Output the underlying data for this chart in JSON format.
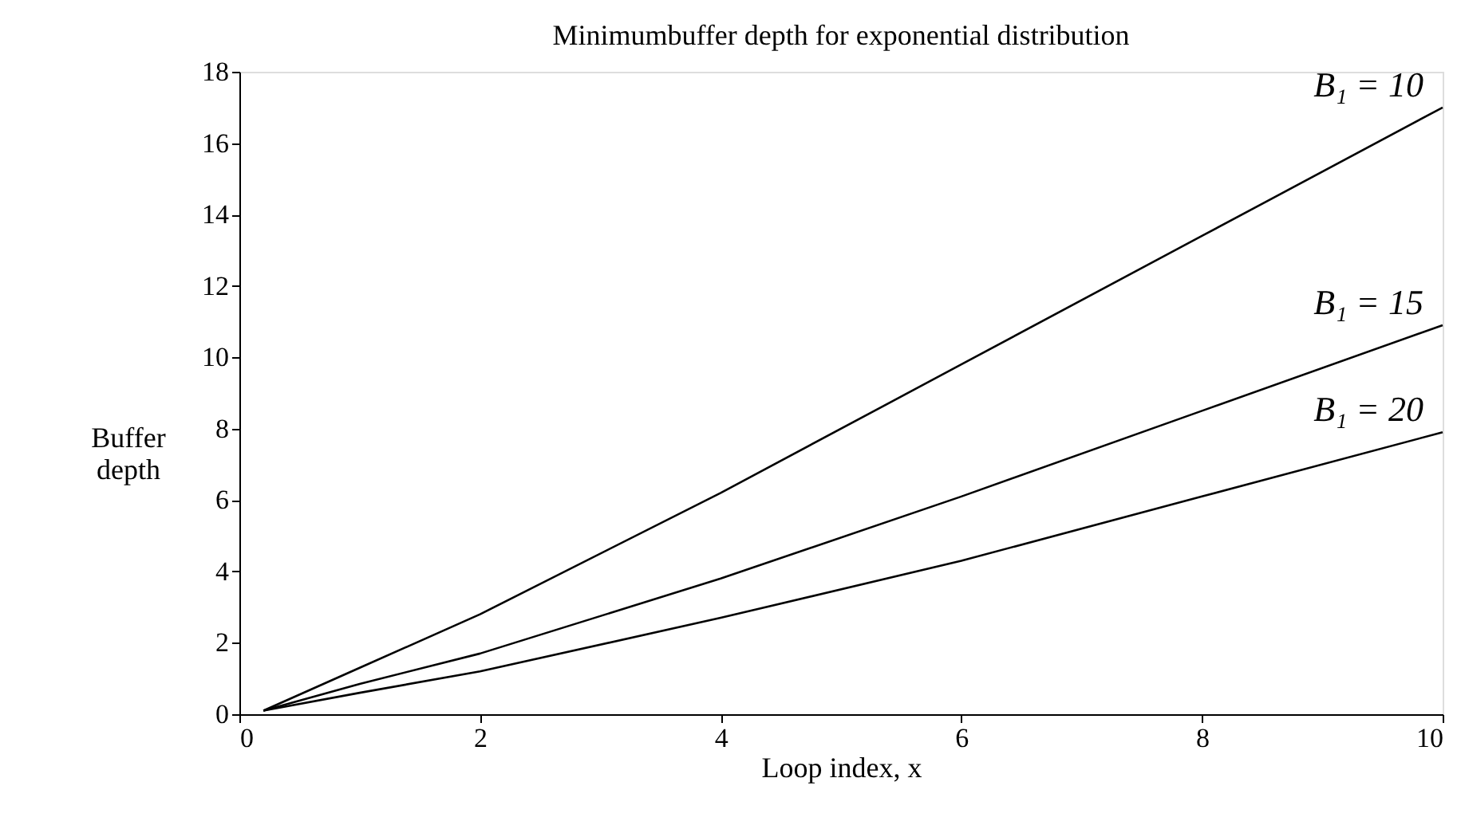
{
  "chart_data": {
    "type": "line",
    "title": "Minimumbuffer depth for exponential distribution",
    "xlabel": "Loop index, x",
    "ylabel": "Buffer depth",
    "xlim": [
      0,
      10
    ],
    "xticks": [
      0,
      2,
      4,
      6,
      8,
      10
    ],
    "ylim": [
      0,
      18
    ],
    "yticks": [
      0,
      2,
      4,
      6,
      8,
      10,
      12,
      14,
      16,
      18
    ],
    "grid": false,
    "series": [
      {
        "name": "B₁ = 10",
        "color": "#000000",
        "x": [
          0.2,
          1,
          2,
          4,
          6,
          8,
          10
        ],
        "values": [
          0.1,
          1.3,
          2.8,
          6.2,
          9.8,
          13.4,
          17.0
        ]
      },
      {
        "name": "B₁ = 15",
        "color": "#000000",
        "x": [
          0.2,
          1,
          2,
          4,
          6,
          8,
          10
        ],
        "values": [
          0.1,
          0.85,
          1.7,
          3.8,
          6.1,
          8.5,
          10.9
        ]
      },
      {
        "name": "B₁ = 20",
        "color": "#000000",
        "x": [
          0.2,
          1,
          2,
          4,
          6,
          8,
          10
        ],
        "values": [
          0.1,
          0.6,
          1.2,
          2.7,
          4.3,
          6.1,
          7.9
        ]
      }
    ]
  }
}
